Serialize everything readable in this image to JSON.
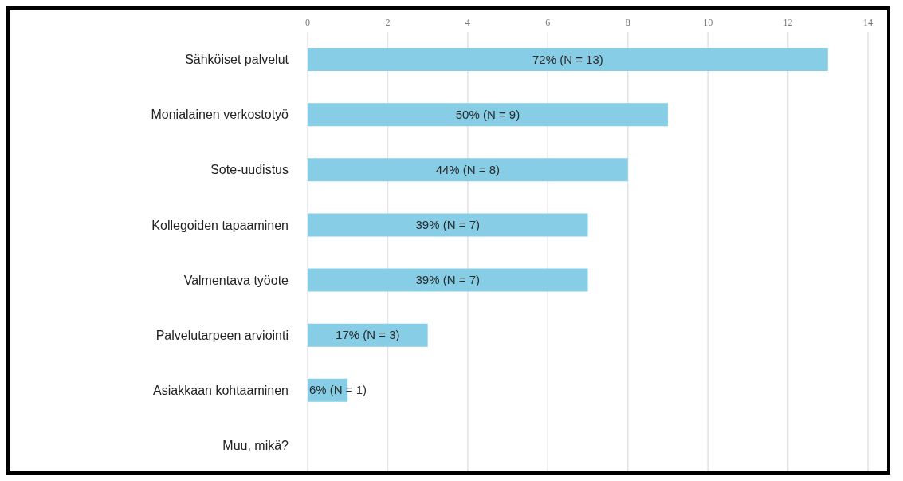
{
  "chart_data": {
    "type": "bar",
    "orientation": "horizontal",
    "categories": [
      "Sähköiset palvelut",
      "Monialainen verkostotyö",
      "Sote-uudistus",
      "Kollegoiden tapaaminen",
      "Valmentava työote",
      "Palvelutarpeen arviointi",
      "Asiakkaan kohtaaminen",
      "Muu, mikä?"
    ],
    "values": [
      13,
      9,
      8,
      7,
      7,
      3,
      1,
      0
    ],
    "value_labels": [
      "72% (N = 13)",
      "50% (N = 9)",
      "44% (N = 8)",
      "39% (N = 7)",
      "39% (N = 7)",
      "17% (N = 3)",
      "6% (N = 1)",
      null
    ],
    "color": "#87cde6",
    "xlim": [
      0,
      14
    ],
    "xticks": [
      0,
      2,
      4,
      6,
      8,
      10,
      12,
      14
    ],
    "grid": "x"
  }
}
